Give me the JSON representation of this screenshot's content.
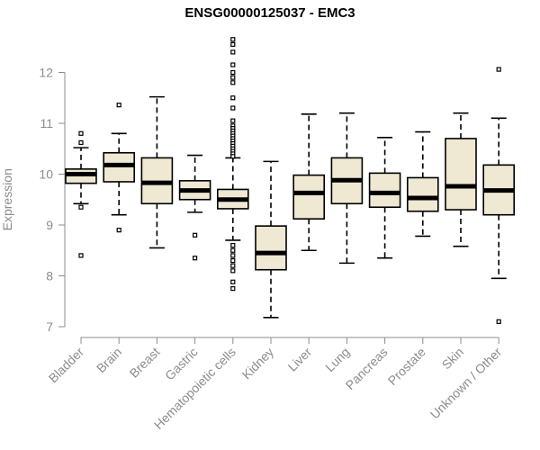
{
  "chart_data": {
    "type": "box",
    "title": "ENSG00000125037 - EMC3",
    "xlabel": "",
    "ylabel": "Expression",
    "ylim": [
      7,
      12.4
    ],
    "yticks": [
      7,
      8,
      9,
      10,
      11,
      12
    ],
    "box_fill": "#efe8d2",
    "line_color": "#000000",
    "categories": [
      "Bladder",
      "Brain",
      "Breast",
      "Gastric",
      "Hematopoietic cells",
      "Kidney",
      "Liver",
      "Lung",
      "Pancreas",
      "Prostate",
      "Skin",
      "Unknown / Other"
    ],
    "boxes": [
      {
        "whisker_low": 9.42,
        "q1": 9.82,
        "median": 10.0,
        "q3": 10.1,
        "whisker_high": 10.52,
        "outliers": [
          10.8,
          10.62,
          9.35,
          8.4
        ]
      },
      {
        "whisker_low": 9.2,
        "q1": 9.85,
        "median": 10.18,
        "q3": 10.42,
        "whisker_high": 10.8,
        "outliers": [
          11.36,
          8.9
        ]
      },
      {
        "whisker_low": 8.55,
        "q1": 9.42,
        "median": 9.83,
        "q3": 10.32,
        "whisker_high": 11.52,
        "outliers": []
      },
      {
        "whisker_low": 9.25,
        "q1": 9.5,
        "median": 9.68,
        "q3": 9.87,
        "whisker_high": 10.37,
        "outliers": [
          8.8,
          8.35
        ]
      },
      {
        "whisker_low": 8.7,
        "q1": 9.32,
        "median": 9.5,
        "q3": 9.7,
        "whisker_high": 10.32,
        "outliers": [
          12.65,
          12.55,
          12.4,
          12.15,
          12.0,
          11.9,
          11.8,
          11.5,
          11.3,
          11.05,
          10.95,
          10.9,
          10.85,
          10.8,
          10.75,
          10.7,
          10.65,
          10.6,
          10.55,
          10.5,
          10.45,
          10.4,
          10.35,
          8.6,
          8.5,
          8.4,
          8.3,
          8.2,
          8.1,
          7.88,
          7.75
        ]
      },
      {
        "whisker_low": 7.18,
        "q1": 8.12,
        "median": 8.45,
        "q3": 8.98,
        "whisker_high": 10.25,
        "outliers": []
      },
      {
        "whisker_low": 8.5,
        "q1": 9.12,
        "median": 9.63,
        "q3": 9.98,
        "whisker_high": 11.18,
        "outliers": []
      },
      {
        "whisker_low": 8.25,
        "q1": 9.42,
        "median": 9.88,
        "q3": 10.32,
        "whisker_high": 11.2,
        "outliers": []
      },
      {
        "whisker_low": 8.35,
        "q1": 9.35,
        "median": 9.63,
        "q3": 10.02,
        "whisker_high": 10.72,
        "outliers": []
      },
      {
        "whisker_low": 8.78,
        "q1": 9.27,
        "median": 9.53,
        "q3": 9.93,
        "whisker_high": 10.83,
        "outliers": []
      },
      {
        "whisker_low": 8.58,
        "q1": 9.3,
        "median": 9.76,
        "q3": 10.7,
        "whisker_high": 11.2,
        "outliers": []
      },
      {
        "whisker_low": 7.95,
        "q1": 9.2,
        "median": 9.68,
        "q3": 10.18,
        "whisker_high": 11.1,
        "outliers": [
          12.06,
          7.1
        ]
      }
    ]
  }
}
